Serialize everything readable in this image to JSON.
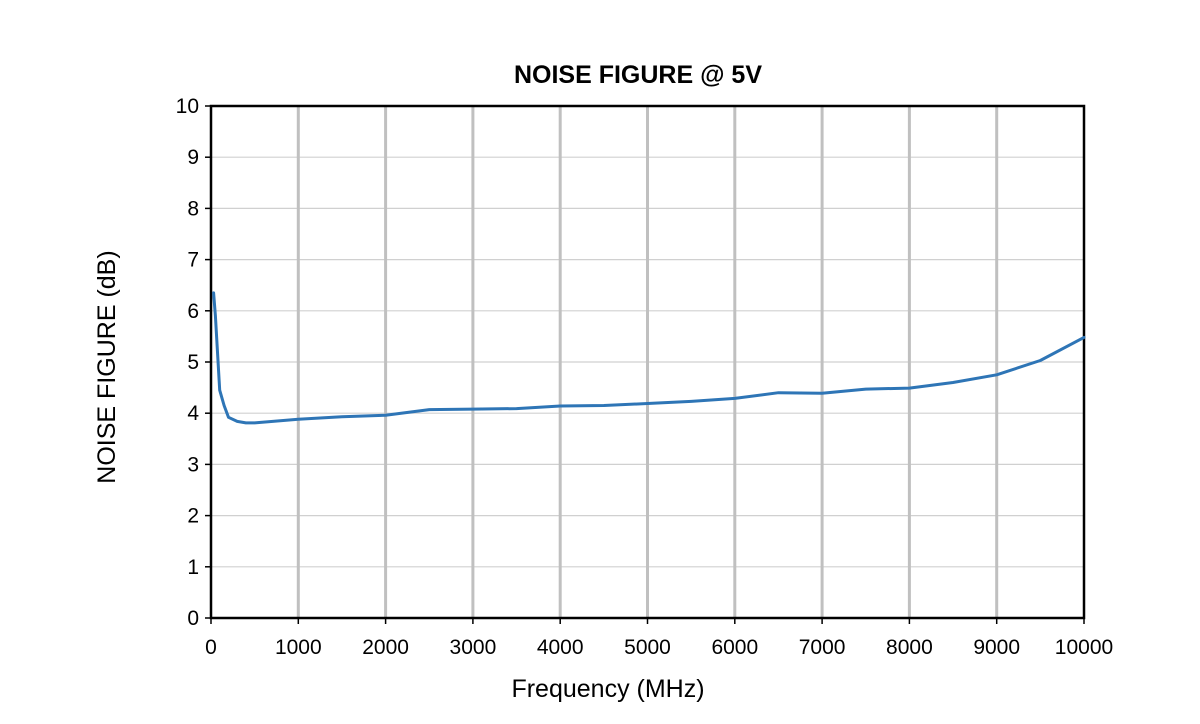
{
  "chart_data": {
    "type": "line",
    "title": "NOISE FIGURE @ 5V",
    "xlabel": "Frequency (MHz)",
    "ylabel": "NOISE FIGURE (dB)",
    "xlim": [
      0,
      10000
    ],
    "ylim": [
      0,
      10
    ],
    "xticks": [
      "0",
      "1000",
      "2000",
      "3000",
      "4000",
      "5000",
      "6000",
      "7000",
      "8000",
      "9000",
      "10000"
    ],
    "yticks": [
      "0",
      "1",
      "2",
      "3",
      "4",
      "5",
      "6",
      "7",
      "8",
      "9",
      "10"
    ],
    "grid": {
      "vertical": true,
      "horizontal": true
    },
    "legend": "none",
    "series": [
      {
        "color": "#2E75B6",
        "x": [
          30,
          50,
          100,
          150,
          200,
          300,
          400,
          500,
          1000,
          1500,
          2000,
          2500,
          3000,
          3500,
          4000,
          4500,
          5000,
          5500,
          6000,
          6500,
          7000,
          7500,
          8000,
          8500,
          9000,
          9500,
          10000
        ],
        "y": [
          6.35,
          5.9,
          4.45,
          4.15,
          3.92,
          3.84,
          3.81,
          3.81,
          3.88,
          3.93,
          3.96,
          4.07,
          4.08,
          4.09,
          4.14,
          4.15,
          4.19,
          4.23,
          4.29,
          4.4,
          4.39,
          4.47,
          4.49,
          4.6,
          4.75,
          5.03,
          5.48
        ]
      }
    ]
  }
}
